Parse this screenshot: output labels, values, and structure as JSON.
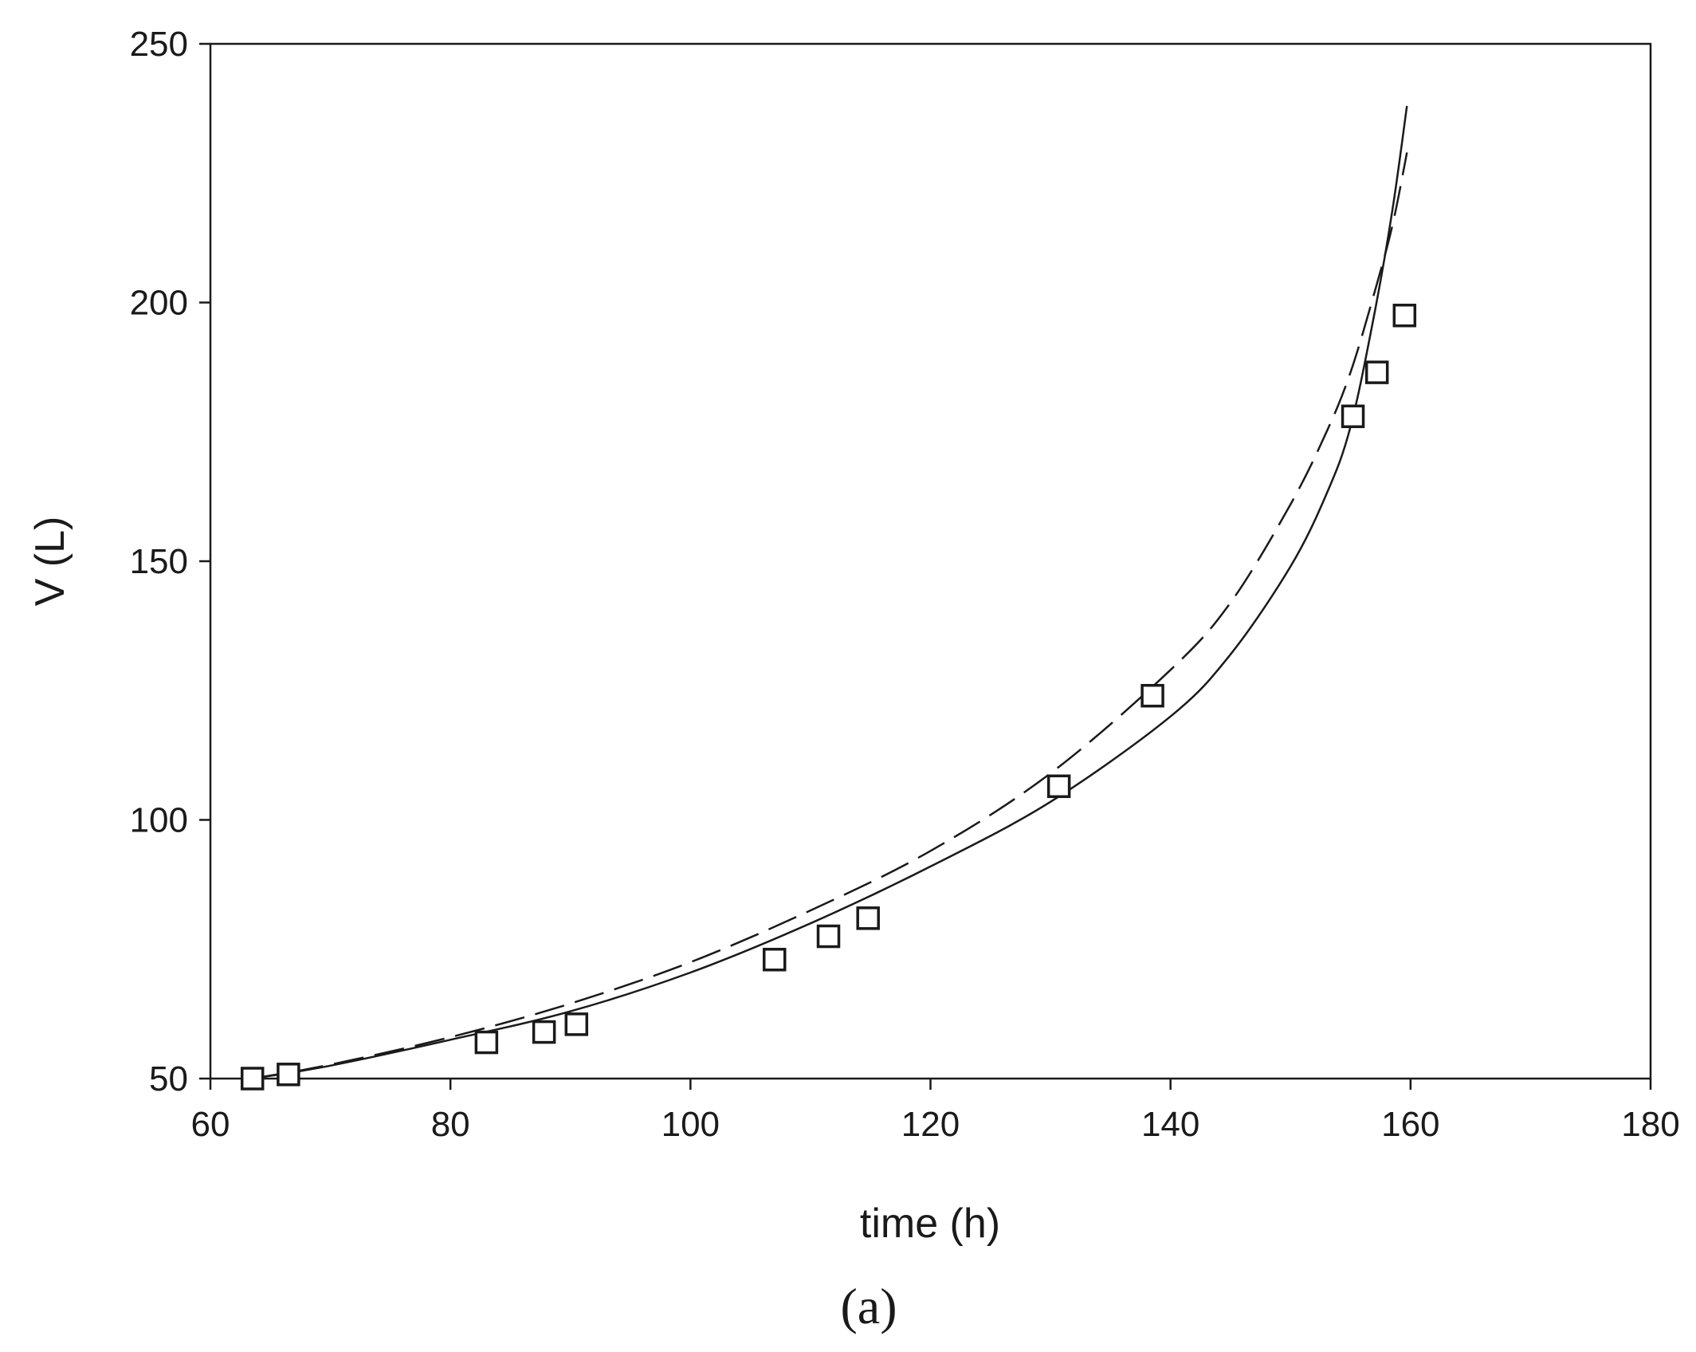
{
  "chart_data": {
    "type": "scatter",
    "xlabel": "time (h)",
    "ylabel": "V (L)",
    "panel_label": "(a)",
    "xlim": [
      60,
      180
    ],
    "ylim": [
      50,
      250
    ],
    "x_ticks": [
      60,
      80,
      100,
      120,
      140,
      160,
      180
    ],
    "y_ticks": [
      50,
      100,
      150,
      200,
      250
    ],
    "grid": false,
    "legend": "none",
    "series": [
      {
        "style": "square-markers",
        "x": [
          63.5,
          66.5,
          83,
          87.8,
          90.5,
          107,
          111.5,
          114.8,
          130.7,
          138.5,
          155.2,
          157.2,
          159.5
        ],
        "y": [
          50,
          50.8,
          57,
          59,
          60.5,
          73,
          77.5,
          81,
          106.5,
          124,
          178,
          186.5,
          197.5
        ]
      },
      {
        "style": "solid-line",
        "x": [
          63.5,
          70,
          80,
          90,
          100,
          110,
          120,
          130,
          140,
          145,
          150,
          153,
          155,
          157,
          158.5,
          159.7
        ],
        "y": [
          50,
          52.5,
          57.5,
          63,
          70.5,
          80,
          91,
          103.5,
          120,
          132,
          149,
          163,
          176,
          198,
          218,
          238
        ]
      },
      {
        "style": "dashed-line",
        "x": [
          63.5,
          70,
          80,
          90,
          100,
          110,
          120,
          130,
          140,
          145,
          150,
          153,
          155,
          157,
          158.5,
          159.7
        ],
        "y": [
          50,
          52.7,
          58,
          64.5,
          72.5,
          82.5,
          94,
          109,
          129,
          142,
          161,
          175,
          186.5,
          202,
          215,
          229
        ]
      }
    ]
  }
}
